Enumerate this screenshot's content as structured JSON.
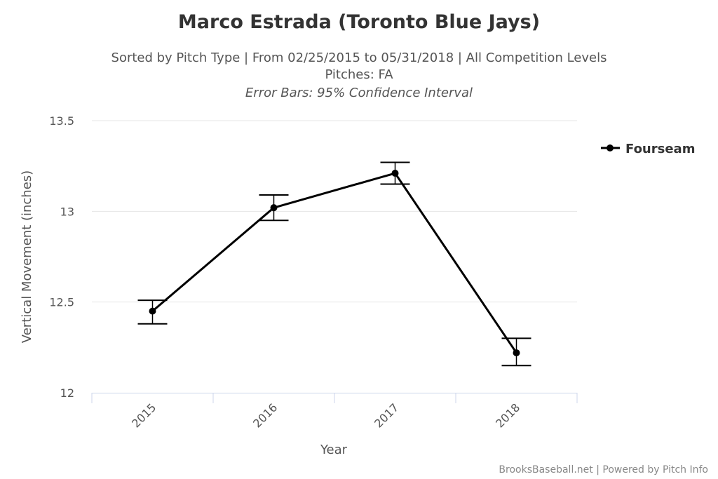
{
  "chart_data": {
    "type": "line",
    "title": "Marco Estrada (Toronto Blue Jays)",
    "subtitle_lines": [
      "Sorted by Pitch Type | From 02/25/2015 to 05/31/2018 | All Competition Levels",
      "Pitches: FA"
    ],
    "note": "Error Bars: 95% Confidence Interval",
    "xlabel": "Year",
    "ylabel": "Vertical Movement (inches)",
    "categories": [
      "2015",
      "2016",
      "2017",
      "2018"
    ],
    "ylim": [
      12,
      13.5
    ],
    "yticks": [
      {
        "value": 12,
        "label": "12"
      },
      {
        "value": 12.5,
        "label": "12.5"
      },
      {
        "value": 13,
        "label": "13"
      },
      {
        "value": 13.5,
        "label": "13.5"
      }
    ],
    "grid": true,
    "legend_position": "top-right",
    "series": [
      {
        "name": "Fourseam",
        "color": "#000000",
        "values": [
          12.45,
          13.02,
          13.21,
          12.22
        ],
        "error_low": [
          12.38,
          12.95,
          13.15,
          12.15
        ],
        "error_high": [
          12.51,
          13.09,
          13.27,
          12.3
        ]
      }
    ]
  },
  "credits": "BrooksBaseball.net | Powered by Pitch Info"
}
